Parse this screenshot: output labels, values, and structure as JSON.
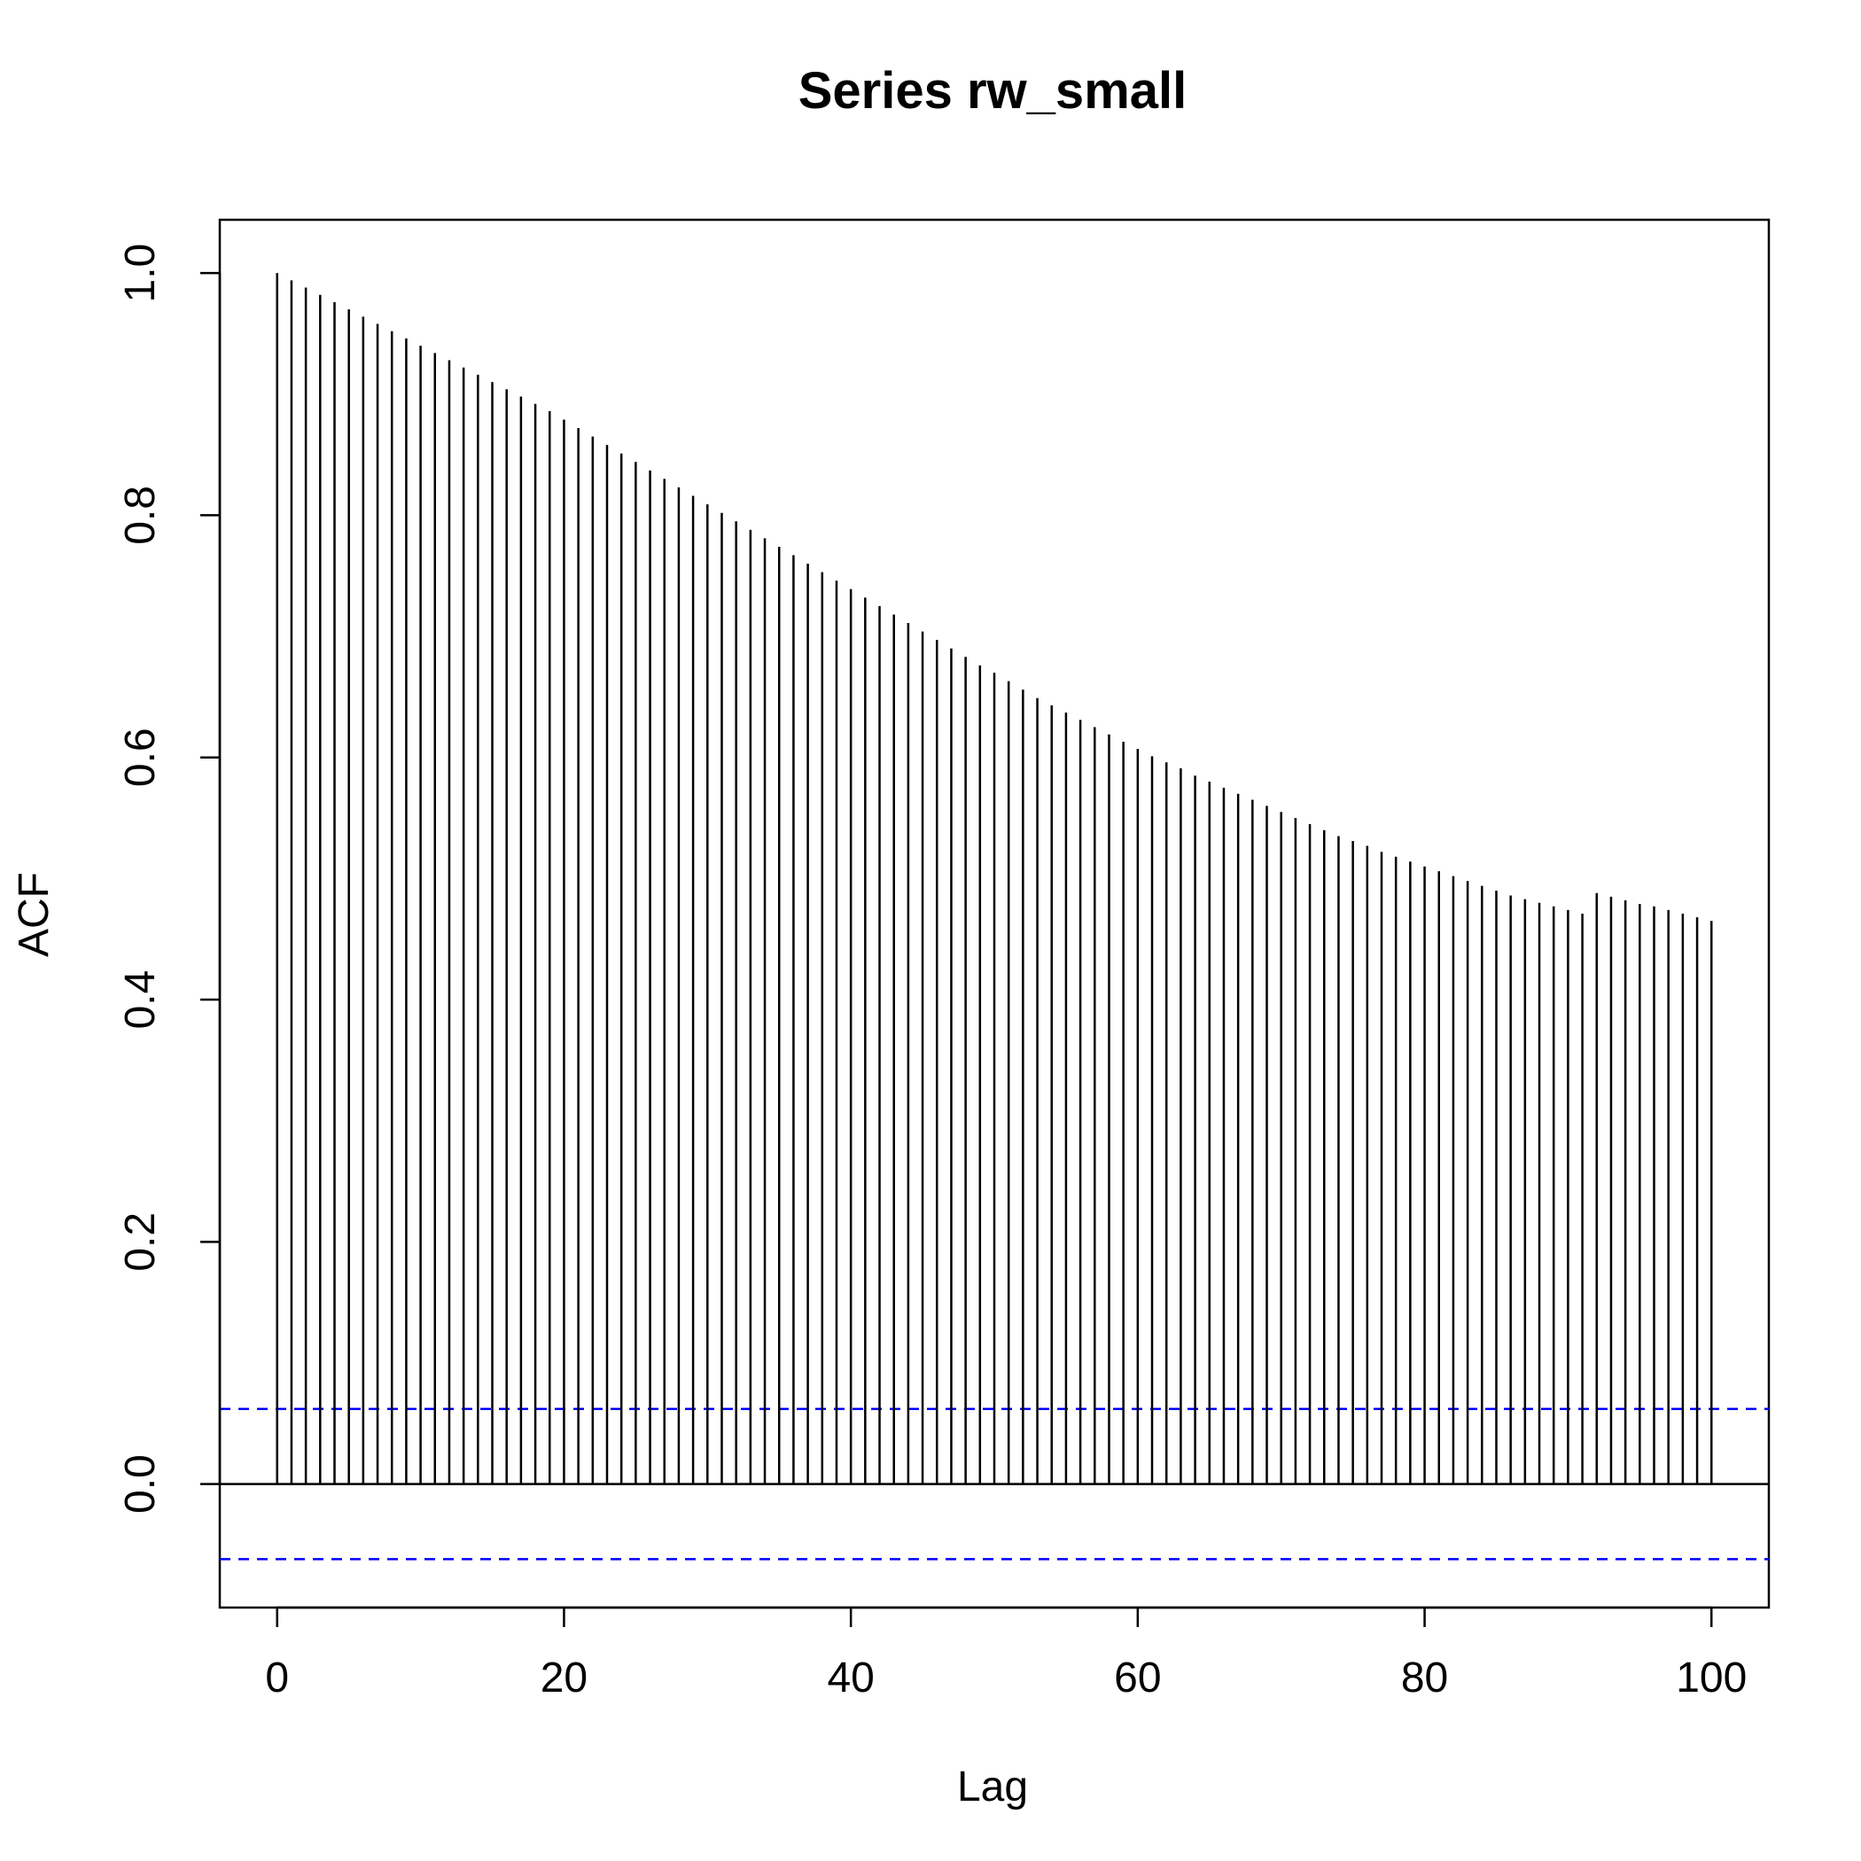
{
  "chart_data": {
    "type": "bar",
    "subtype": "acf-stem",
    "title": "Series  rw_small",
    "xlabel": "Lag",
    "ylabel": "ACF",
    "xlim": [
      -4,
      104
    ],
    "ylim": [
      -0.102,
      1.044
    ],
    "xticks": [
      0,
      20,
      40,
      60,
      80,
      100
    ],
    "xtick_labels": [
      "0",
      "20",
      "40",
      "60",
      "80",
      "100"
    ],
    "yticks": [
      0.0,
      0.2,
      0.4,
      0.6,
      0.8,
      1.0
    ],
    "ytick_labels": [
      "0.0",
      "0.2",
      "0.4",
      "0.6",
      "0.8",
      "1.0"
    ],
    "grid": false,
    "zero_line": 0,
    "confidence_band": {
      "upper": 0.062,
      "lower": -0.062,
      "color": "#0000ff",
      "style": "dashed"
    },
    "stem_color": "#000000",
    "lags": [
      0,
      1,
      2,
      3,
      4,
      5,
      6,
      7,
      8,
      9,
      10,
      11,
      12,
      13,
      14,
      15,
      16,
      17,
      18,
      19,
      20,
      21,
      22,
      23,
      24,
      25,
      26,
      27,
      28,
      29,
      30,
      31,
      32,
      33,
      34,
      35,
      36,
      37,
      38,
      39,
      40,
      41,
      42,
      43,
      44,
      45,
      46,
      47,
      48,
      49,
      50,
      51,
      52,
      53,
      54,
      55,
      56,
      57,
      58,
      59,
      60,
      61,
      62,
      63,
      64,
      65,
      66,
      67,
      68,
      69,
      70,
      71,
      72,
      73,
      74,
      75,
      76,
      77,
      78,
      79,
      80,
      81,
      82,
      83,
      84,
      85,
      86,
      87,
      88,
      89,
      90,
      91,
      92,
      93,
      94,
      95,
      96,
      97,
      98,
      99,
      100
    ],
    "values": [
      1.0,
      0.994,
      0.988,
      0.982,
      0.976,
      0.97,
      0.964,
      0.958,
      0.952,
      0.946,
      0.94,
      0.934,
      0.928,
      0.922,
      0.916,
      0.91,
      0.904,
      0.898,
      0.892,
      0.886,
      0.879,
      0.872,
      0.865,
      0.858,
      0.851,
      0.844,
      0.837,
      0.83,
      0.823,
      0.816,
      0.809,
      0.802,
      0.795,
      0.788,
      0.781,
      0.774,
      0.767,
      0.76,
      0.753,
      0.746,
      0.739,
      0.732,
      0.725,
      0.718,
      0.711,
      0.704,
      0.697,
      0.69,
      0.683,
      0.676,
      0.67,
      0.663,
      0.656,
      0.649,
      0.643,
      0.637,
      0.631,
      0.625,
      0.619,
      0.613,
      0.607,
      0.601,
      0.596,
      0.591,
      0.585,
      0.58,
      0.575,
      0.57,
      0.565,
      0.56,
      0.555,
      0.55,
      0.545,
      0.54,
      0.535,
      0.531,
      0.527,
      0.522,
      0.518,
      0.514,
      0.51,
      0.506,
      0.502,
      0.498,
      0.494,
      0.49,
      0.486,
      0.483,
      0.48,
      0.477,
      0.474,
      0.471,
      0.488,
      0.485,
      0.482,
      0.479,
      0.477,
      0.474,
      0.471,
      0.468,
      0.465
    ]
  }
}
